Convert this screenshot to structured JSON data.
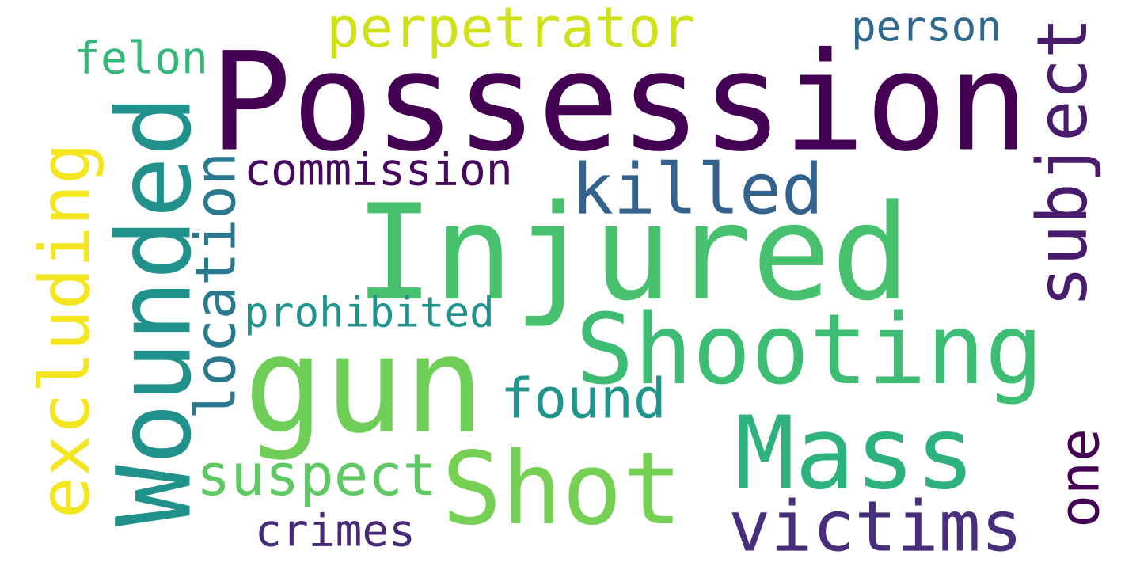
{
  "words": [
    {
      "key": "possession",
      "text": "Possession",
      "color": "#440154",
      "rotated": false
    },
    {
      "key": "injured",
      "text": "Injured",
      "color": "#48c16e",
      "rotated": false
    },
    {
      "key": "gun",
      "text": "gun",
      "color": "#6ece58",
      "rotated": false
    },
    {
      "key": "wounded",
      "text": "Wounded",
      "color": "#21918c",
      "rotated": true
    },
    {
      "key": "shooting",
      "text": "Shooting",
      "color": "#3dbc74",
      "rotated": false
    },
    {
      "key": "shot",
      "text": "Shot",
      "color": "#75d054",
      "rotated": false
    },
    {
      "key": "mass",
      "text": "Mass",
      "color": "#2db27d",
      "rotated": false
    },
    {
      "key": "victims",
      "text": "victims",
      "color": "#472d7b",
      "rotated": false
    },
    {
      "key": "subject",
      "text": "subject",
      "color": "#481b6d",
      "rotated": true
    },
    {
      "key": "killed",
      "text": "killed",
      "color": "#33638d",
      "rotated": false
    },
    {
      "key": "excluding",
      "text": "excluding",
      "color": "#f4e61e",
      "rotated": true
    },
    {
      "key": "perpetrator",
      "text": "perpetrator",
      "color": "#d0e11c",
      "rotated": false
    },
    {
      "key": "commission",
      "text": "commission",
      "color": "#46085c",
      "rotated": false
    },
    {
      "key": "location",
      "text": "location",
      "color": "#2a788e",
      "rotated": true
    },
    {
      "key": "prohibited",
      "text": "prohibited",
      "color": "#21918c",
      "rotated": false
    },
    {
      "key": "found",
      "text": "found",
      "color": "#1f958b",
      "rotated": false
    },
    {
      "key": "suspect",
      "text": "suspect",
      "color": "#5ec962",
      "rotated": false
    },
    {
      "key": "crimes",
      "text": "crimes",
      "color": "#482878",
      "rotated": false
    },
    {
      "key": "felon",
      "text": "felon",
      "color": "#35b779",
      "rotated": false
    },
    {
      "key": "person",
      "text": "person",
      "color": "#31688e",
      "rotated": false
    },
    {
      "key": "one",
      "text": "one",
      "color": "#440154",
      "rotated": true
    }
  ]
}
